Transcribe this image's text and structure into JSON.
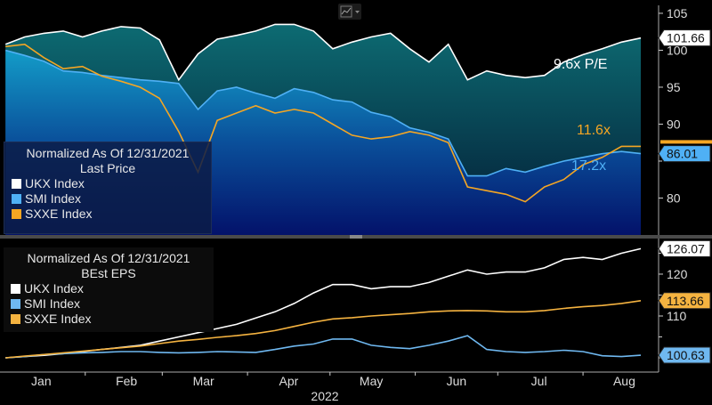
{
  "chart_data": [
    {
      "type": "area",
      "panel": "top",
      "legend_title": "Normalized As Of 12/31/2021",
      "legend_subtitle": "Last Price",
      "legend_placement": "bottom-left",
      "ylim": [
        75,
        106.8
      ],
      "yticks": [
        80,
        85,
        90,
        95,
        100,
        105
      ],
      "x": [
        "2022-01-03",
        "2022-01-10",
        "2022-01-17",
        "2022-01-24",
        "2022-01-31",
        "2022-02-07",
        "2022-02-14",
        "2022-02-21",
        "2022-02-28",
        "2022-03-07",
        "2022-03-14",
        "2022-03-21",
        "2022-03-28",
        "2022-04-04",
        "2022-04-11",
        "2022-04-18",
        "2022-04-25",
        "2022-05-02",
        "2022-05-09",
        "2022-05-16",
        "2022-05-23",
        "2022-05-30",
        "2022-06-06",
        "2022-06-13",
        "2022-06-20",
        "2022-06-27",
        "2022-07-04",
        "2022-07-11",
        "2022-07-18",
        "2022-07-25",
        "2022-08-01",
        "2022-08-08",
        "2022-08-15",
        "2022-08-22"
      ],
      "series": [
        {
          "name": "UKX Index",
          "color": "#ffffff",
          "last": "101.66",
          "annotation": "9.6x P/E",
          "values": [
            100.8,
            101.8,
            102.3,
            102.6,
            101.8,
            102.6,
            103.2,
            103.0,
            101.4,
            96.0,
            99.5,
            101.5,
            102.0,
            102.6,
            103.5,
            103.5,
            102.6,
            100.2,
            101.1,
            101.8,
            102.3,
            100.2,
            98.4,
            100.8,
            96.0,
            97.2,
            96.6,
            96.3,
            96.6,
            98.4,
            99.4,
            100.2,
            101.1,
            101.66
          ]
        },
        {
          "name": "SMI Index",
          "color": "#4fb0f5",
          "last": "86.01",
          "annotation": "17.2x",
          "values": [
            100.0,
            99.3,
            98.5,
            97.2,
            97.0,
            96.6,
            96.3,
            96.0,
            95.8,
            95.5,
            92.0,
            94.5,
            95.0,
            94.2,
            93.5,
            94.8,
            94.3,
            93.3,
            93.0,
            91.6,
            91.0,
            89.5,
            88.9,
            88.0,
            83.0,
            83.0,
            84.0,
            83.5,
            84.3,
            85.0,
            85.5,
            86.0,
            86.3,
            86.01
          ]
        },
        {
          "name": "SXXE Index",
          "color": "#f5a623",
          "last": "",
          "annotation": "11.6x",
          "values": [
            100.5,
            100.8,
            99.0,
            97.5,
            97.8,
            96.5,
            95.8,
            95.0,
            93.5,
            89.0,
            83.5,
            90.5,
            91.5,
            92.5,
            91.5,
            92.0,
            91.5,
            90.0,
            88.5,
            88.0,
            88.3,
            89.0,
            88.5,
            87.5,
            81.5,
            81.0,
            80.5,
            79.5,
            81.5,
            82.5,
            84.5,
            85.5,
            87.0,
            87.0
          ]
        }
      ]
    },
    {
      "type": "line",
      "panel": "bottom",
      "legend_title": "Normalized As Of 12/31/2021",
      "legend_subtitle": "BEst EPS",
      "legend_placement": "top-left",
      "ylim": [
        96.6,
        128.5
      ],
      "yticks": [
        110,
        120
      ],
      "xlabel": "2022",
      "month_labels": [
        "Jan",
        "Feb",
        "Mar",
        "Apr",
        "May",
        "Jun",
        "Jul",
        "Aug"
      ],
      "series": [
        {
          "name": "UKX Index",
          "color": "#ffffff",
          "last": "126.07",
          "values": [
            100.0,
            100.3,
            100.6,
            101.0,
            101.5,
            102.0,
            102.5,
            103.0,
            104.0,
            105.0,
            106.0,
            107.0,
            108.0,
            109.5,
            111.0,
            113.0,
            115.5,
            117.5,
            117.5,
            116.5,
            117.0,
            117.0,
            118.0,
            119.5,
            121.0,
            120.0,
            120.5,
            120.5,
            121.5,
            123.5,
            124.0,
            123.5,
            125.0,
            126.07
          ]
        },
        {
          "name": "SMI Index",
          "color": "#6fb8f0",
          "last": "100.63",
          "values": [
            100.0,
            100.3,
            100.8,
            101.0,
            101.2,
            101.3,
            101.5,
            101.5,
            101.3,
            101.2,
            101.3,
            101.5,
            101.4,
            101.3,
            102.0,
            102.8,
            103.3,
            104.5,
            104.5,
            103.0,
            102.5,
            102.2,
            103.0,
            104.0,
            105.3,
            102.0,
            101.5,
            101.3,
            101.5,
            101.8,
            101.5,
            100.5,
            100.3,
            100.63
          ]
        },
        {
          "name": "SXXE Index",
          "color": "#f5b340",
          "last": "113.66",
          "values": [
            100.0,
            100.4,
            100.8,
            101.2,
            101.6,
            102.0,
            102.4,
            102.8,
            103.4,
            104.0,
            104.4,
            104.9,
            105.3,
            105.8,
            106.5,
            107.5,
            108.5,
            109.3,
            109.6,
            110.0,
            110.3,
            110.6,
            111.0,
            111.2,
            111.3,
            111.2,
            111.0,
            111.0,
            111.3,
            111.8,
            112.2,
            112.5,
            113.0,
            113.66
          ]
        }
      ]
    }
  ]
}
